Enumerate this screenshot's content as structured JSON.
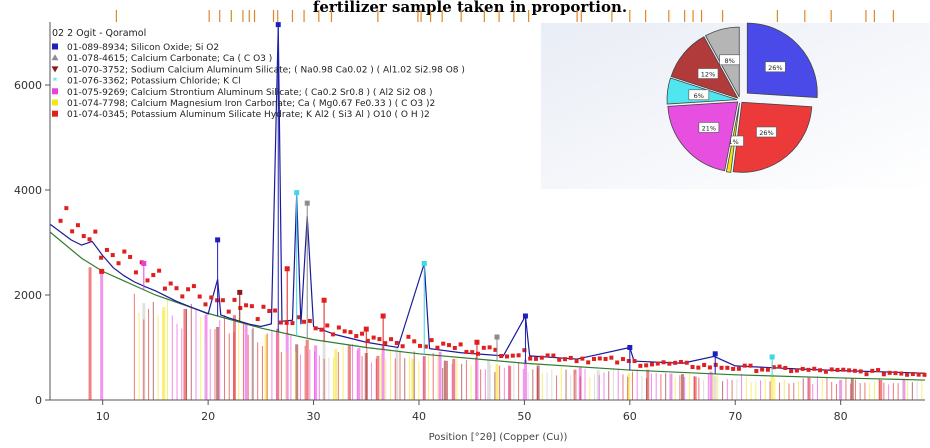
{
  "header": {
    "title_fragment": "fertilizer sample taken in proportion."
  },
  "chart_data": {
    "type": "line",
    "sample_name": "02 2 Ogit - Qoramol",
    "xlabel": "Position [°2θ] (Copper (Cu))",
    "xlim": [
      5,
      88
    ],
    "ylim": [
      0,
      7200
    ],
    "x_ticks": [
      10,
      20,
      30,
      40,
      50,
      60,
      70,
      80
    ],
    "y_ticks": [
      0,
      2000,
      4000,
      6000
    ],
    "legend": [
      {
        "label": "01-089-8934; Silicon Oxide; Si O2",
        "color": "#1f1fbf",
        "marker": "square"
      },
      {
        "label": "01-078-4615; Calcium Carbonate; Ca ( C O3 )",
        "color": "#8c8c8c",
        "marker": "triangle-up"
      },
      {
        "label": "01-070-3752; Sodium Calcium Aluminum Silicate; ( Na0.98 Ca0.02 ) ( Al1.02 Si2.98 O8 )",
        "color": "#8b1a1a",
        "marker": "triangle-down"
      },
      {
        "label": "01-076-3362; Potassium Chloride; K Cl",
        "color": "#3fd6e6",
        "marker": "star"
      },
      {
        "label": "01-075-9269; Calcium Strontium Aluminum Silicate; ( Ca0.2 Sr0.8 ) ( Al2 Si2 O8 )",
        "color": "#e83fe0",
        "marker": "square"
      },
      {
        "label": "01-074-7798; Calcium Magnesium Iron Carbonate; Ca ( Mg0.67 Fe0.33 ) ( C O3 )2",
        "color": "#f2e61a",
        "marker": "square"
      },
      {
        "label": "01-074-0345; Potassium Aluminum Silicate Hydrate; K Al2 ( Si3 Al ) O10 ( O H )2",
        "color": "#e01f1f",
        "marker": "square"
      }
    ],
    "pattern_points": [
      [
        5,
        3350
      ],
      [
        7,
        3050
      ],
      [
        8,
        2950
      ],
      [
        9,
        3020
      ],
      [
        10,
        2750
      ],
      [
        11,
        2520
      ],
      [
        12,
        2370
      ],
      [
        13,
        2250
      ],
      [
        14,
        2160
      ],
      [
        15,
        2080
      ],
      [
        16,
        1980
      ],
      [
        17,
        1880
      ],
      [
        18,
        1800
      ],
      [
        19,
        1720
      ],
      [
        20,
        1640
      ],
      [
        20.9,
        2300
      ],
      [
        21.2,
        1620
      ],
      [
        22,
        1560
      ],
      [
        24,
        1440
      ],
      [
        25,
        1400
      ],
      [
        26,
        1450
      ],
      [
        26.65,
        7100
      ],
      [
        27,
        1500
      ],
      [
        28,
        1520
      ],
      [
        28.4,
        3900
      ],
      [
        28.8,
        1440
      ],
      [
        29.4,
        3500
      ],
      [
        30,
        1400
      ],
      [
        32,
        1250
      ],
      [
        35,
        1100
      ],
      [
        38,
        1000
      ],
      [
        40.5,
        2600
      ],
      [
        41,
        980
      ],
      [
        44,
        900
      ],
      [
        48,
        840
      ],
      [
        50.1,
        1600
      ],
      [
        50.5,
        840
      ],
      [
        55,
        780
      ],
      [
        60,
        1000
      ],
      [
        60.4,
        740
      ],
      [
        65,
        700
      ],
      [
        68,
        830
      ],
      [
        70,
        650
      ],
      [
        75,
        600
      ],
      [
        80,
        560
      ],
      [
        85,
        530
      ],
      [
        88,
        510
      ]
    ],
    "background_points": [
      [
        5,
        3200
      ],
      [
        8,
        2700
      ],
      [
        10,
        2450
      ],
      [
        15,
        2000
      ],
      [
        20,
        1650
      ],
      [
        25,
        1370
      ],
      [
        30,
        1150
      ],
      [
        35,
        1000
      ],
      [
        40,
        880
      ],
      [
        50,
        700
      ],
      [
        60,
        570
      ],
      [
        70,
        480
      ],
      [
        80,
        420
      ],
      [
        88,
        380
      ]
    ],
    "labeled_peaks": [
      {
        "x": 20.9,
        "y": 3050,
        "series": 0
      },
      {
        "x": 26.65,
        "y": 7150,
        "series": 0
      },
      {
        "x": 28.4,
        "y": 3950,
        "series": 3
      },
      {
        "x": 29.4,
        "y": 3750,
        "series": 1
      },
      {
        "x": 40.5,
        "y": 2600,
        "series": 3
      },
      {
        "x": 50.1,
        "y": 1600,
        "series": 0
      },
      {
        "x": 60.0,
        "y": 1000,
        "series": 0
      },
      {
        "x": 68.1,
        "y": 880,
        "series": 0
      },
      {
        "x": 73.5,
        "y": 820,
        "series": 3
      },
      {
        "x": 23.0,
        "y": 2050,
        "series": 2
      },
      {
        "x": 27.5,
        "y": 2500,
        "series": 6
      },
      {
        "x": 35.0,
        "y": 1350,
        "series": 6
      },
      {
        "x": 13.9,
        "y": 2600,
        "series": 4
      },
      {
        "x": 9.9,
        "y": 2450,
        "series": 6
      },
      {
        "x": 31.0,
        "y": 1900,
        "series": 6
      },
      {
        "x": 36.6,
        "y": 1600,
        "series": 6
      },
      {
        "x": 47.4,
        "y": 1200,
        "series": 1
      },
      {
        "x": 45.5,
        "y": 1100,
        "series": 6
      }
    ],
    "stick_positions": [
      8.8,
      9.9,
      13.9,
      15.8,
      17.8,
      19.8,
      20.9,
      22.5,
      23.6,
      24.2,
      25.5,
      26.6,
      27.5,
      28.4,
      29.4,
      30.2,
      31.0,
      32.1,
      33.4,
      34.3,
      35.0,
      36.1,
      36.6,
      37.9,
      39.4,
      40.5,
      42.0,
      42.5,
      43.3,
      45.5,
      46.6,
      47.4,
      48.6,
      50.1,
      51.3,
      54.8,
      55.3,
      57.0,
      59.9,
      61.7,
      63.9,
      65.0,
      66.2,
      67.7,
      68.1,
      73.5,
      77.0,
      80.0,
      81.1,
      83.8,
      86.0
    ],
    "top_ticks": [
      11.3,
      20.1,
      21.1,
      22.2,
      23.3,
      23.9,
      24.4,
      26.2,
      26.6,
      28.0,
      29.1,
      30.5,
      31.7,
      36.1,
      39.9,
      40.2,
      41.1,
      42.2,
      44.0,
      46.2,
      47.6,
      49.0,
      50.4,
      55.0,
      55.4,
      58.3,
      60.0,
      61.5,
      63.7,
      65.2,
      66.0,
      66.8,
      68.8,
      74.0,
      76.6,
      79.1,
      82.4,
      83.2,
      85.0
    ],
    "pie": [
      {
        "label": "26%",
        "value": 26,
        "color": "#4a4ae8"
      },
      {
        "label": "26%",
        "value": 26,
        "color": "#ec3a3a"
      },
      {
        "label": "1%",
        "value": 1,
        "color": "#f2e61a"
      },
      {
        "label": "21%",
        "value": 21,
        "color": "#e64fe0"
      },
      {
        "label": "6%",
        "value": 6,
        "color": "#4fe6f0"
      },
      {
        "label": "12%",
        "value": 12,
        "color": "#b13a3a"
      },
      {
        "label": "8%",
        "value": 8,
        "color": "#b5b5b5"
      }
    ],
    "grid": false
  }
}
